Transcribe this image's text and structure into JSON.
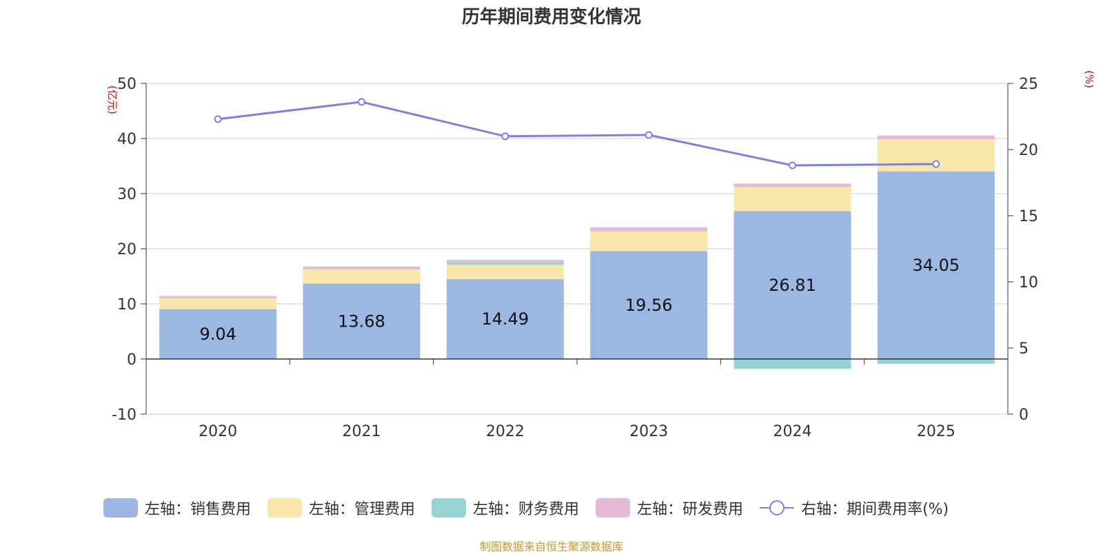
{
  "chart_data": {
    "type": "bar",
    "title": "历年期间费用变化情况",
    "source": "制图数据来自恒生聚源数据库",
    "categories": [
      "2020",
      "2021",
      "2022",
      "2023",
      "2024",
      "2025"
    ],
    "left_axis": {
      "unit": "(亿元)",
      "ylim": [
        -10,
        50
      ],
      "ticks": [
        -10,
        0,
        10,
        20,
        30,
        40,
        50
      ]
    },
    "right_axis": {
      "unit": "(%)",
      "ylim": [
        0,
        25
      ],
      "ticks": [
        0,
        5,
        10,
        15,
        20,
        25
      ]
    },
    "series": [
      {
        "name": "左轴：销售费用",
        "kind": "bar",
        "color": "#9bb8e3",
        "values": [
          9.04,
          13.68,
          14.49,
          19.56,
          26.81,
          34.05
        ],
        "labels": [
          "9.04",
          "13.68",
          "14.49",
          "19.56",
          "26.81",
          "34.05"
        ]
      },
      {
        "name": "左轴：管理费用",
        "kind": "bar",
        "color": "#f8e7a8",
        "values": [
          2.0,
          2.6,
          2.6,
          3.6,
          4.4,
          5.8
        ]
      },
      {
        "name": "左轴：财务费用",
        "kind": "bar",
        "color": "#96d4d4",
        "values": [
          0.1,
          0.1,
          0.5,
          0.1,
          -1.8,
          -0.9
        ]
      },
      {
        "name": "左轴：研发费用",
        "kind": "bar",
        "color": "#e8b8d8",
        "values": [
          0.3,
          0.4,
          0.4,
          0.6,
          0.6,
          0.7
        ]
      },
      {
        "name": "右轴：期间费用率(%)",
        "kind": "line",
        "color": "#7b7fea",
        "values": [
          22.3,
          23.6,
          21.0,
          21.1,
          18.8,
          18.9
        ]
      }
    ]
  }
}
